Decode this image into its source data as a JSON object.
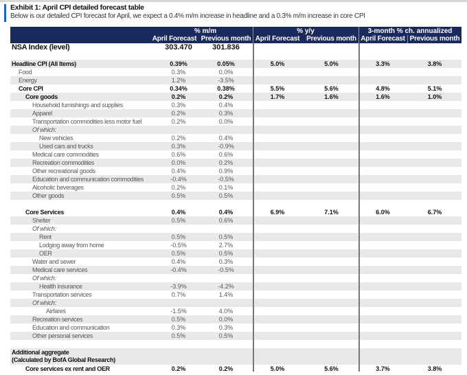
{
  "title": "Exhibit 1: April CPI detailed forecast table",
  "subtitle": "Below is our detailed CPI forecast for April, we expect a 0.4% m/m increase in headline and a 0.3% m/m increase in core CPI",
  "colors": {
    "header": "#1b2a5c",
    "accent": "#1f63c6",
    "stripe": "#e9e9e9"
  },
  "groups": [
    "% m/m",
    "% y/y",
    "3-month % ch. annualized"
  ],
  "columns": [
    "April Forecast",
    "Previous month",
    "April Forecast",
    "Previous month",
    "April Forecast",
    "Previous month"
  ],
  "rows": [
    {
      "label": "NSA Index (level)",
      "style": "bold big",
      "indent": 0,
      "values": [
        "303.470",
        "301.836",
        "",
        "",
        "",
        ""
      ]
    },
    {
      "label": "",
      "style": "",
      "indent": 0,
      "values": [
        "",
        "",
        "",
        "",
        "",
        ""
      ]
    },
    {
      "label": "Headline CPI  (All Items)",
      "style": "bold",
      "indent": 0,
      "values": [
        "0.39%",
        "0.05%",
        "5.0%",
        "5.0%",
        "3.3%",
        "3.8%"
      ]
    },
    {
      "label": "Food",
      "style": "",
      "indent": 1,
      "values": [
        "0.3%",
        "0.0%",
        "",
        "",
        "",
        ""
      ]
    },
    {
      "label": "Energy",
      "style": "",
      "indent": 1,
      "values": [
        "1.2%",
        "-3.5%",
        "",
        "",
        "",
        ""
      ]
    },
    {
      "label": "Core CPI",
      "style": "bold",
      "indent": 1,
      "values": [
        "0.34%",
        "0.38%",
        "5.5%",
        "5.6%",
        "4.8%",
        "5.1%"
      ]
    },
    {
      "label": "Core goods",
      "style": "bold",
      "indent": 2,
      "values": [
        "0.2%",
        "0.2%",
        "1.7%",
        "1.6%",
        "1.6%",
        "1.0%"
      ]
    },
    {
      "label": "Household furnishings and supplies",
      "style": "",
      "indent": 3,
      "values": [
        "0.3%",
        "0.4%",
        "",
        "",
        "",
        ""
      ]
    },
    {
      "label": "Apparel",
      "style": "",
      "indent": 3,
      "values": [
        "0.2%",
        "0.3%",
        "",
        "",
        "",
        ""
      ]
    },
    {
      "label": "Transportation  commodities less motor fuel",
      "style": "",
      "indent": 3,
      "values": [
        "0.2%",
        "0.0%",
        "",
        "",
        "",
        ""
      ]
    },
    {
      "label": "Of which:",
      "style": "ital",
      "indent": 3,
      "values": [
        "",
        "",
        "",
        "",
        "",
        ""
      ]
    },
    {
      "label": "New vehicles",
      "style": "",
      "indent": 4,
      "values": [
        "0.2%",
        "0.4%",
        "",
        "",
        "",
        ""
      ]
    },
    {
      "label": "Used cars and trucks",
      "style": "",
      "indent": 4,
      "values": [
        "0.3%",
        "-0.9%",
        "",
        "",
        "",
        ""
      ]
    },
    {
      "label": "Medical care commodities",
      "style": "",
      "indent": 3,
      "values": [
        "0.6%",
        "0.6%",
        "",
        "",
        "",
        ""
      ]
    },
    {
      "label": "Recreation commodities",
      "style": "",
      "indent": 3,
      "values": [
        "0.0%",
        "0.2%",
        "",
        "",
        "",
        ""
      ]
    },
    {
      "label": "Other recreational goods",
      "style": "",
      "indent": 3,
      "values": [
        "0.4%",
        "0.9%",
        "",
        "",
        "",
        ""
      ]
    },
    {
      "label": "Education and communication  commodities",
      "style": "",
      "indent": 3,
      "values": [
        "-0.4%",
        "-0.5%",
        "",
        "",
        "",
        ""
      ]
    },
    {
      "label": "Alcoholic beverages",
      "style": "",
      "indent": 3,
      "values": [
        "0.2%",
        "0.1%",
        "",
        "",
        "",
        ""
      ]
    },
    {
      "label": "Other goods",
      "style": "",
      "indent": 3,
      "values": [
        "0.5%",
        "0.5%",
        "",
        "",
        "",
        ""
      ]
    },
    {
      "label": "",
      "style": "",
      "indent": 0,
      "values": [
        "",
        "",
        "",
        "",
        "",
        ""
      ]
    },
    {
      "label": "Core Services",
      "style": "bold",
      "indent": 2,
      "values": [
        "0.4%",
        "0.4%",
        "6.9%",
        "7.1%",
        "6.0%",
        "6.7%"
      ]
    },
    {
      "label": "Shelter",
      "style": "",
      "indent": 3,
      "values": [
        "0.5%",
        "0.6%",
        "",
        "",
        "",
        ""
      ]
    },
    {
      "label": "Of which:",
      "style": "ital",
      "indent": 3,
      "values": [
        "",
        "",
        "",
        "",
        "",
        ""
      ]
    },
    {
      "label": "Rent",
      "style": "",
      "indent": 4,
      "values": [
        "0.5%",
        "0.5%",
        "",
        "",
        "",
        ""
      ]
    },
    {
      "label": "Lodging away from home",
      "style": "",
      "indent": 4,
      "values": [
        "-0.5%",
        "2.7%",
        "",
        "",
        "",
        ""
      ]
    },
    {
      "label": "OER",
      "style": "",
      "indent": 4,
      "values": [
        "0.5%",
        "0.5%",
        "",
        "",
        "",
        ""
      ]
    },
    {
      "label": "Water and sewer",
      "style": "",
      "indent": 3,
      "values": [
        "0.4%",
        "0.3%",
        "",
        "",
        "",
        ""
      ]
    },
    {
      "label": "Medical care services",
      "style": "",
      "indent": 3,
      "values": [
        "-0.4%",
        "-0.5%",
        "",
        "",
        "",
        ""
      ]
    },
    {
      "label": "Of which:",
      "style": "ital",
      "indent": 3,
      "values": [
        "",
        "",
        "",
        "",
        "",
        ""
      ]
    },
    {
      "label": "Health insurance",
      "style": "",
      "indent": 4,
      "values": [
        "-3.9%",
        "-4.2%",
        "",
        "",
        "",
        ""
      ]
    },
    {
      "label": "Transportation  services",
      "style": "",
      "indent": 3,
      "values": [
        "0.7%",
        "1.4%",
        "",
        "",
        "",
        ""
      ]
    },
    {
      "label": "Of which:",
      "style": "ital",
      "indent": 3,
      "values": [
        "",
        "",
        "",
        "",
        "",
        ""
      ]
    },
    {
      "label": "Airfares",
      "style": "",
      "indent": 5,
      "values": [
        "-1.5%",
        "4.0%",
        "",
        "",
        "",
        ""
      ]
    },
    {
      "label": "Recreation services",
      "style": "",
      "indent": 3,
      "values": [
        "0.5%",
        "0.0%",
        "",
        "",
        "",
        ""
      ]
    },
    {
      "label": "Education and communication",
      "style": "",
      "indent": 3,
      "values": [
        "0.3%",
        "0.3%",
        "",
        "",
        "",
        ""
      ]
    },
    {
      "label": "Other personal services",
      "style": "",
      "indent": 3,
      "values": [
        "0.5%",
        "0.5%",
        "",
        "",
        "",
        ""
      ]
    },
    {
      "label": "",
      "style": "",
      "indent": 0,
      "values": [
        "",
        "",
        "",
        "",
        "",
        ""
      ]
    },
    {
      "label": "Additional aggregate\n(Calculated by BofA Global Research)",
      "style": "bold tall",
      "indent": 0,
      "values": [
        "",
        "",
        "",
        "",
        "",
        ""
      ]
    },
    {
      "label": "Core services ex rent and OER",
      "style": "bold",
      "indent": 2,
      "values": [
        "0.2%",
        "0.2%",
        "5.0%",
        "5.6%",
        "3.7%",
        "3.8%"
      ]
    }
  ]
}
